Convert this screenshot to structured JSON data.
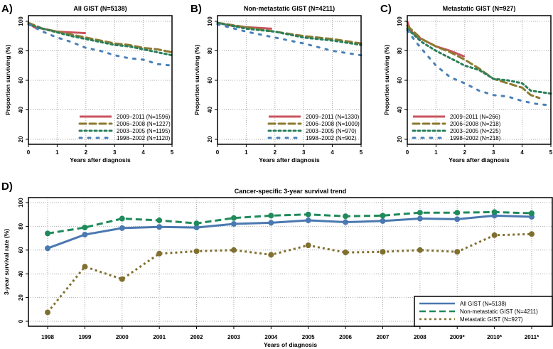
{
  "chart_data": [
    {
      "panel": "A)",
      "type": "line",
      "title": "All GIST (N=5138)",
      "xlabel": "Years after diagnosis",
      "ylabel": "Proportion surviving (%)",
      "xlim": [
        0,
        5
      ],
      "ylim": [
        17,
        102
      ],
      "xticks": [
        0,
        1,
        2,
        3,
        4,
        5
      ],
      "yticks": [
        20,
        40,
        60,
        80,
        100
      ],
      "grid": true,
      "legend": "bottom-right",
      "series": [
        {
          "name": "2009–2011 (N=1596)",
          "color": "#c9545f",
          "style": "solid",
          "x": [
            0,
            0.2,
            0.5,
            1,
            1.5,
            2
          ],
          "y": [
            99,
            96,
            95,
            93,
            92.5,
            92
          ]
        },
        {
          "name": "2006–2008 (N=1227)",
          "color": "#8c7a30",
          "style": "dashed",
          "x": [
            0,
            0.5,
            1,
            1.5,
            2,
            2.5,
            3,
            3.5,
            4,
            4.5,
            5
          ],
          "y": [
            99,
            95,
            93,
            91,
            89,
            87,
            85,
            84,
            82,
            81,
            79
          ]
        },
        {
          "name": "2003–2005 (N=1195)",
          "color": "#2a7f5a",
          "style": "dotted",
          "x": [
            0,
            0.5,
            1,
            1.5,
            2,
            2.5,
            3,
            3.5,
            4,
            4.5,
            5
          ],
          "y": [
            98,
            95,
            92.5,
            90,
            88,
            86,
            84,
            83,
            81,
            79,
            77
          ]
        },
        {
          "name": "1998–2002 (N=1120)",
          "color": "#4a80b8",
          "style": "sparse",
          "x": [
            0,
            0.5,
            1,
            1.5,
            2,
            2.5,
            3,
            3.5,
            4,
            4.5,
            5
          ],
          "y": [
            98,
            93,
            89,
            86,
            82,
            80,
            77,
            75,
            74,
            71,
            70
          ]
        }
      ]
    },
    {
      "panel": "B)",
      "type": "line",
      "title": "Non-metastatic GIST (N=4211)",
      "xlabel": "Years after diagnosis",
      "ylabel": "Proportion surviving (%)",
      "xlim": [
        0,
        5
      ],
      "ylim": [
        17,
        102
      ],
      "xticks": [
        0,
        1,
        2,
        3,
        4,
        5
      ],
      "yticks": [
        20,
        40,
        60,
        80,
        100
      ],
      "grid": true,
      "legend": "bottom-right",
      "series": [
        {
          "name": "2009–2011 (N=1330)",
          "color": "#c9545f",
          "style": "solid",
          "x": [
            0,
            0.5,
            1,
            1.5,
            1.9
          ],
          "y": [
            99,
            97,
            96,
            95.5,
            95
          ]
        },
        {
          "name": "2006–2008 (N=1009)",
          "color": "#8c7a30",
          "style": "dashed",
          "x": [
            0,
            1,
            2,
            3,
            4,
            5
          ],
          "y": [
            99,
            96,
            93,
            90,
            88,
            85
          ]
        },
        {
          "name": "2003–2005 (N=970)",
          "color": "#2a7f5a",
          "style": "dotted",
          "x": [
            0,
            1,
            2,
            3,
            4,
            5
          ],
          "y": [
            99,
            95,
            93,
            89,
            87,
            84
          ]
        },
        {
          "name": "1998–2002 (N=902)",
          "color": "#4a80b8",
          "style": "sparse",
          "x": [
            0,
            1,
            2,
            3,
            4,
            5
          ],
          "y": [
            98,
            93,
            89,
            85,
            80,
            77
          ]
        }
      ]
    },
    {
      "panel": "C)",
      "type": "line",
      "title": "Metastatic GIST (N=927)",
      "xlabel": "Years after diagnosis",
      "ylabel": "Proportion surviving (%)",
      "xlim": [
        0,
        5
      ],
      "ylim": [
        17,
        102
      ],
      "xticks": [
        0,
        1,
        2,
        3,
        4,
        5
      ],
      "yticks": [
        20,
        40,
        60,
        80,
        100
      ],
      "grid": true,
      "legend": "bottom-left",
      "series": [
        {
          "name": "2009–2011 (N=266)",
          "color": "#c9545f",
          "style": "solid",
          "x": [
            0,
            0.1,
            0.3,
            0.6,
            1,
            1.5,
            2
          ],
          "y": [
            100,
            94,
            90,
            87,
            83,
            80,
            76
          ]
        },
        {
          "name": "2006–2008 (N=218)",
          "color": "#8c7a30",
          "style": "dashed",
          "x": [
            0,
            0.5,
            1,
            1.5,
            2,
            2.5,
            3,
            3.5,
            4,
            4.3,
            4.6
          ],
          "y": [
            97,
            88,
            83,
            79,
            74,
            68,
            61,
            58,
            55,
            50,
            48
          ]
        },
        {
          "name": "2003–2005 (N=225)",
          "color": "#2a7f5a",
          "style": "dotted",
          "x": [
            0,
            0.5,
            1,
            1.5,
            2,
            2.5,
            3,
            3.5,
            4,
            4.3,
            5
          ],
          "y": [
            95,
            86,
            80,
            75,
            70,
            67,
            61,
            60,
            58,
            53,
            51
          ]
        },
        {
          "name": "1998–2002 (N=218)",
          "color": "#4a80b8",
          "style": "sparse",
          "x": [
            0,
            0.3,
            0.6,
            1,
            1.5,
            2,
            2.5,
            3,
            3.5,
            4,
            4.5,
            5
          ],
          "y": [
            94,
            86,
            79,
            70,
            62,
            58,
            53,
            50,
            49,
            46,
            44,
            43
          ]
        }
      ]
    },
    {
      "panel": "D)",
      "type": "line",
      "title": "Cancer-specific 3-year survival trend",
      "xlabel": "Years of diagnosis",
      "ylabel": "3-year survival rate (%)",
      "categories": [
        "1998",
        "1999",
        "2000",
        "2001",
        "2002",
        "2003",
        "2004",
        "2005",
        "2006",
        "2007",
        "2008",
        "2009*",
        "2010*",
        "2011*"
      ],
      "ylim": [
        -3,
        103
      ],
      "yticks": [
        0,
        20,
        40,
        60,
        80,
        100
      ],
      "grid": true,
      "legend": "bottom-right",
      "series": [
        {
          "name": "All GIST (N=5138)",
          "color": "#4a78b0",
          "style": "solid",
          "values": [
            61.5,
            73,
            78.5,
            79.5,
            79,
            82,
            83,
            85,
            83.5,
            84.5,
            86.5,
            86,
            89,
            88
          ]
        },
        {
          "name": "Non-metastatic GIST (N=4211)",
          "color": "#1f8a5a",
          "style": "dashed",
          "values": [
            74,
            79,
            86.5,
            85,
            82.5,
            87,
            89,
            90,
            88.5,
            89,
            91.5,
            91.5,
            92,
            91
          ]
        },
        {
          "name": "Metastatic GIST (N=927)",
          "color": "#807030",
          "style": "dotted",
          "values": [
            7.5,
            46,
            35.5,
            57,
            59,
            60,
            56,
            64,
            58,
            58.5,
            60,
            58.5,
            72.5,
            73.5
          ]
        }
      ]
    }
  ]
}
